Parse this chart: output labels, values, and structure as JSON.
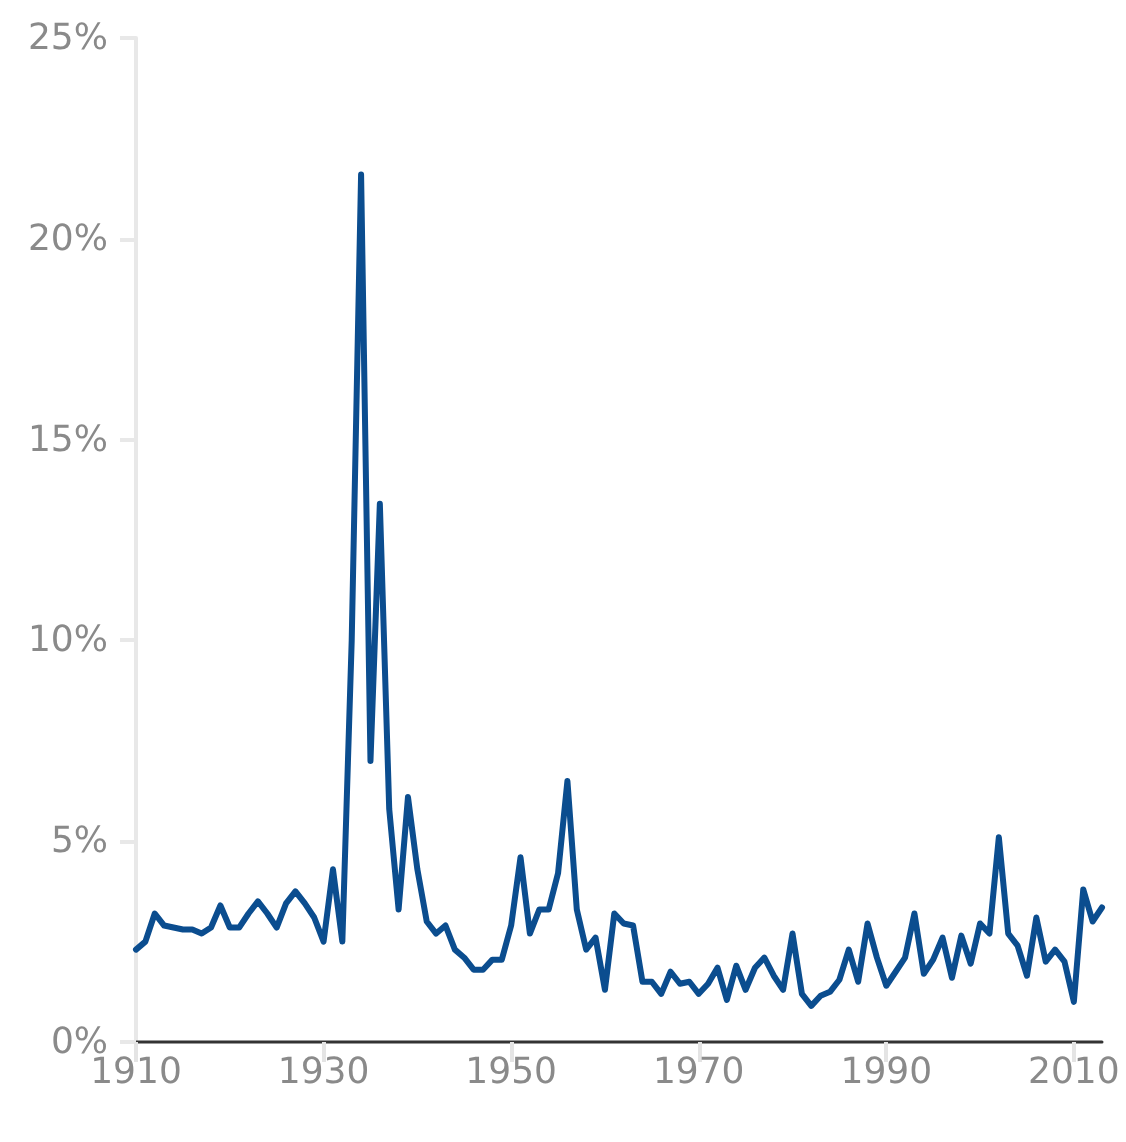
{
  "chart_data": {
    "type": "line",
    "x": [
      1910,
      1911,
      1912,
      1913,
      1914,
      1915,
      1916,
      1917,
      1918,
      1919,
      1920,
      1921,
      1922,
      1923,
      1924,
      1925,
      1926,
      1927,
      1928,
      1929,
      1930,
      1931,
      1932,
      1933,
      1934,
      1935,
      1936,
      1937,
      1938,
      1939,
      1940,
      1941,
      1942,
      1943,
      1944,
      1945,
      1946,
      1947,
      1948,
      1949,
      1950,
      1951,
      1952,
      1953,
      1954,
      1955,
      1956,
      1957,
      1958,
      1959,
      1960,
      1961,
      1962,
      1963,
      1964,
      1965,
      1966,
      1967,
      1968,
      1969,
      1970,
      1971,
      1972,
      1973,
      1974,
      1975,
      1976,
      1977,
      1978,
      1979,
      1980,
      1981,
      1982,
      1983,
      1984,
      1985,
      1986,
      1987,
      1988,
      1989,
      1990,
      1991,
      1992,
      1993,
      1994,
      1995,
      1996,
      1997,
      1998,
      1999,
      2000,
      2001,
      2002,
      2003,
      2004,
      2005,
      2006,
      2007,
      2008,
      2009,
      2010,
      2011,
      2012,
      2013
    ],
    "series": [
      {
        "color": "#0b4d8f",
        "values": [
          2.3,
          2.5,
          3.2,
          2.9,
          2.85,
          2.8,
          2.8,
          2.7,
          2.85,
          3.4,
          2.85,
          2.85,
          3.2,
          3.5,
          3.2,
          2.85,
          3.45,
          3.75,
          3.45,
          3.1,
          2.5,
          4.3,
          2.5,
          10,
          21.6,
          7.0,
          13.4,
          5.8,
          3.3,
          6.1,
          4.3,
          3.0,
          2.7,
          2.9,
          2.3,
          2.1,
          1.8,
          1.8,
          2.05,
          2.05,
          2.9,
          4.6,
          2.7,
          3.3,
          3.3,
          4.2,
          6.5,
          3.3,
          2.3,
          2.6,
          1.3,
          3.2,
          2.95,
          2.9,
          1.5,
          1.5,
          1.2,
          1.75,
          1.45,
          1.5,
          1.2,
          1.45,
          1.85,
          1.05,
          1.9,
          1.3,
          1.85,
          2.1,
          1.65,
          1.3,
          2.7,
          1.2,
          0.9,
          1.15,
          1.25,
          1.55,
          2.3,
          1.5,
          2.95,
          2.1,
          1.4,
          1.75,
          2.1,
          3.2,
          1.7,
          2.05,
          2.6,
          1.6,
          2.65,
          1.95,
          2.95,
          2.7,
          5.1,
          2.7,
          2.4,
          1.65,
          3.1,
          2.0,
          2.3,
          2.0,
          1.0,
          3.8,
          3.0,
          3.35
        ]
      }
    ],
    "xlim": [
      1910,
      2013
    ],
    "xticks": [
      1910,
      1930,
      1950,
      1970,
      1990,
      2010
    ],
    "ylim": [
      0,
      25
    ],
    "yticks": [
      {
        "value": 0,
        "label": "0%"
      },
      {
        "value": 5,
        "label": "5%"
      },
      {
        "value": 10,
        "label": "10%"
      },
      {
        "value": 15,
        "label": "15%"
      },
      {
        "value": 20,
        "label": "20%"
      },
      {
        "value": 25,
        "label": "25%"
      }
    ],
    "grid": false,
    "marker": "none",
    "line_style": "solid"
  }
}
